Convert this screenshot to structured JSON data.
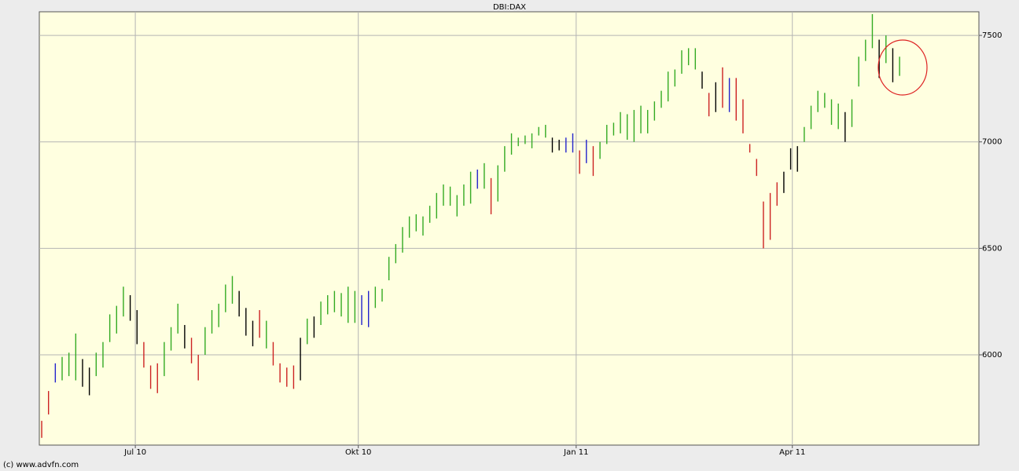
{
  "chart_data": {
    "type": "range-bar",
    "title": "DBI:DAX",
    "footer": "(c) www.advfn.com",
    "xlim": [
      -0.7,
      275.3
    ],
    "xticks": [
      {
        "value": 27.5,
        "label": "Jul 10"
      },
      {
        "value": 93,
        "label": "Okt 10"
      },
      {
        "value": 157,
        "label": "Jan 11"
      },
      {
        "value": 220.5,
        "label": "Apr 11"
      }
    ],
    "ylim": [
      5576,
      7611
    ],
    "yticks": [
      6000,
      6500,
      7000,
      7500
    ],
    "grid": true,
    "series": [
      {
        "color": "#cc2222",
        "x": [
          0,
          2,
          30,
          32,
          34,
          44,
          46,
          64,
          68,
          70,
          72,
          74,
          132,
          158,
          162,
          196,
          200,
          204,
          206,
          208,
          210,
          212,
          214,
          216
        ],
        "low": [
          5610,
          5720,
          5940,
          5840,
          5820,
          5960,
          5880,
          6080,
          5950,
          5870,
          5850,
          5840,
          6660,
          6850,
          6840,
          7120,
          7160,
          7100,
          7040,
          6950,
          6840,
          6500,
          6540,
          6700
        ],
        "high": [
          5690,
          5830,
          6060,
          5950,
          5960,
          6080,
          6000,
          6210,
          6060,
          5960,
          5940,
          5950,
          6830,
          6960,
          6980,
          7230,
          7350,
          7300,
          7200,
          6990,
          6920,
          6720,
          6760,
          6810
        ]
      },
      {
        "color": "#2222cc",
        "x": [
          4,
          94,
          96,
          128,
          154,
          156,
          160,
          202
        ],
        "low": [
          5870,
          6140,
          6130,
          6780,
          6950,
          6950,
          6900,
          7140
        ],
        "high": [
          5960,
          6280,
          6300,
          6870,
          7020,
          7040,
          7010,
          7300
        ]
      },
      {
        "color": "#000000",
        "x": [
          12,
          14,
          26,
          28,
          42,
          58,
          60,
          62,
          76,
          80,
          150,
          152,
          194,
          198,
          218,
          220,
          222,
          236,
          246,
          250
        ],
        "low": [
          5850,
          5810,
          6160,
          6050,
          6030,
          6180,
          6090,
          6040,
          5880,
          6080,
          6950,
          6960,
          7250,
          7140,
          6760,
          6870,
          6860,
          7000,
          7300,
          7280
        ],
        "high": [
          5980,
          5940,
          6280,
          6210,
          6140,
          6300,
          6220,
          6160,
          6080,
          6180,
          7020,
          7010,
          7330,
          7280,
          6860,
          6970,
          6980,
          7140,
          7480,
          7440
        ]
      },
      {
        "color": "#33aa22",
        "x": [
          6,
          8,
          10,
          16,
          18,
          20,
          22,
          24,
          36,
          38,
          40,
          48,
          50,
          52,
          54,
          56,
          66,
          78,
          82,
          84,
          86,
          88,
          90,
          92,
          98,
          100,
          102,
          104,
          106,
          108,
          110,
          112,
          114,
          116,
          118,
          120,
          122,
          124,
          126,
          130,
          134,
          136,
          138,
          140,
          142,
          144,
          146,
          148,
          164,
          166,
          168,
          170,
          172,
          174,
          176,
          178,
          180,
          182,
          184,
          186,
          188,
          190,
          192,
          224,
          226,
          228,
          230,
          232,
          234,
          238,
          240,
          242,
          244,
          248,
          252
        ],
        "low": [
          5880,
          5900,
          5880,
          5900,
          5940,
          6060,
          6100,
          6180,
          5900,
          6020,
          6100,
          6000,
          6100,
          6130,
          6200,
          6240,
          6030,
          6050,
          6140,
          6190,
          6200,
          6180,
          6150,
          6150,
          6220,
          6250,
          6350,
          6430,
          6480,
          6550,
          6580,
          6560,
          6620,
          6640,
          6700,
          6700,
          6650,
          6700,
          6710,
          6780,
          6720,
          6860,
          6940,
          6980,
          6990,
          6970,
          7030,
          7020,
          6920,
          6990,
          7030,
          7040,
          7010,
          7000,
          7040,
          7040,
          7100,
          7160,
          7190,
          7260,
          7320,
          7360,
          7340,
          7000,
          7060,
          7140,
          7160,
          7080,
          7060,
          7070,
          7260,
          7380,
          7440,
          7370,
          7310
        ],
        "high": [
          5990,
          6010,
          6100,
          6010,
          6060,
          6190,
          6230,
          6320,
          6060,
          6130,
          6240,
          6130,
          6210,
          6240,
          6330,
          6370,
          6160,
          6170,
          6250,
          6280,
          6300,
          6290,
          6320,
          6300,
          6320,
          6310,
          6460,
          6520,
          6600,
          6650,
          6660,
          6650,
          6700,
          6760,
          6800,
          6790,
          6750,
          6800,
          6860,
          6900,
          6890,
          6980,
          7040,
          7020,
          7030,
          7040,
          7070,
          7080,
          7000,
          7080,
          7090,
          7140,
          7130,
          7150,
          7170,
          7150,
          7190,
          7240,
          7330,
          7340,
          7430,
          7440,
          7440,
          7070,
          7170,
          7240,
          7230,
          7200,
          7180,
          7200,
          7400,
          7480,
          7600,
          7500,
          7400
        ]
      }
    ]
  }
}
